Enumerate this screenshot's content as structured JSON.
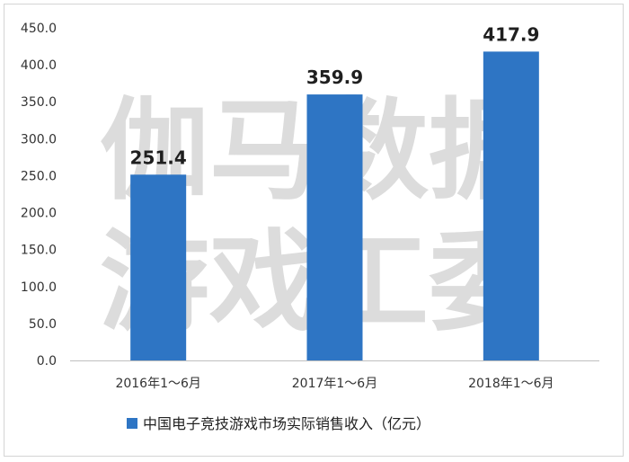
{
  "colors": {
    "bar": "#2e75c4",
    "axis": "#bfbfbf"
  },
  "watermark": {
    "line1": "伽马数据",
    "line2": "游戏工委"
  },
  "chart_data": {
    "type": "bar",
    "categories": [
      "2016年1～6月",
      "2017年1～6月",
      "2018年1～6月"
    ],
    "series": [
      {
        "name": "中国电子竞技游戏市场实际销售收入（亿元）",
        "values": [
          251.4,
          359.9,
          417.9
        ]
      }
    ],
    "data_labels": [
      "251.4",
      "359.9",
      "417.9"
    ],
    "yticks": [
      "0.0",
      "50.0",
      "100.0",
      "150.0",
      "200.0",
      "250.0",
      "300.0",
      "350.0",
      "400.0",
      "450.0"
    ],
    "ylim": [
      0,
      450
    ],
    "grid": false,
    "legend": "bottom"
  }
}
